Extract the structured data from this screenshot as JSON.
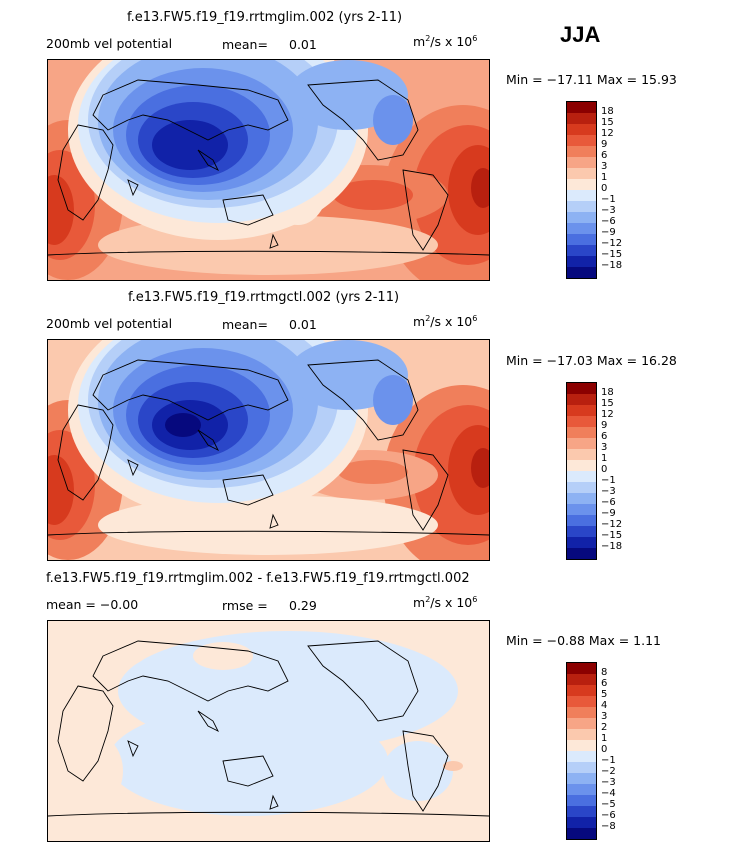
{
  "season": "JJA",
  "panels": [
    {
      "title": "f.e13.FW5.f19_f19.rrtmglim.002 (yrs 2-11)",
      "left_label": "200mb vel potential",
      "mean_label": "mean=",
      "mean_value": "0.01",
      "units_main": "m",
      "units_sup": "2",
      "units_mid": "/s x 10",
      "units_exp": "6",
      "minmax": "Min = −17.11 Max =  15.93",
      "colorbar_labels": [
        "18",
        "15",
        "12",
        "9",
        "6",
        "3",
        "1",
        "0",
        "−1",
        "−3",
        "−6",
        "−9",
        "−12",
        "−15",
        "−18"
      ]
    },
    {
      "title": "f.e13.FW5.f19_f19.rrtmgctl.002 (yrs 2-11)",
      "left_label": "200mb vel potential",
      "mean_label": "mean=",
      "mean_value": "0.01",
      "units_main": "m",
      "units_sup": "2",
      "units_mid": "/s x 10",
      "units_exp": "6",
      "minmax": "Min = −17.03 Max =  16.28",
      "colorbar_labels": [
        "18",
        "15",
        "12",
        "9",
        "6",
        "3",
        "1",
        "0",
        "−1",
        "−3",
        "−6",
        "−9",
        "−12",
        "−15",
        "−18"
      ]
    },
    {
      "title": "f.e13.FW5.f19_f19.rrtmglim.002 - f.e13.FW5.f19_f19.rrtmgctl.002",
      "left_label": "mean =   −0.00",
      "mean_label": "rmse =",
      "mean_value": "0.29",
      "units_main": "m",
      "units_sup": "2",
      "units_mid": "/s x 10",
      "units_exp": "6",
      "minmax": "Min =  −0.88 Max =    1.11",
      "colorbar_labels": [
        "8",
        "6",
        "5",
        "4",
        "3",
        "2",
        "1",
        "0",
        "−1",
        "−2",
        "−3",
        "−4",
        "−5",
        "−6",
        "−8"
      ]
    }
  ],
  "colorbar_colors": [
    "#8b0000",
    "#b8200f",
    "#d73a1e",
    "#e8593a",
    "#f07f5b",
    "#f7a586",
    "#fbc9ae",
    "#fde8d8",
    "#dbeafc",
    "#b5cff8",
    "#8db2f3",
    "#6b92ec",
    "#4a6fe0",
    "#2a46c8",
    "#1122a8",
    "#06097e"
  ]
}
